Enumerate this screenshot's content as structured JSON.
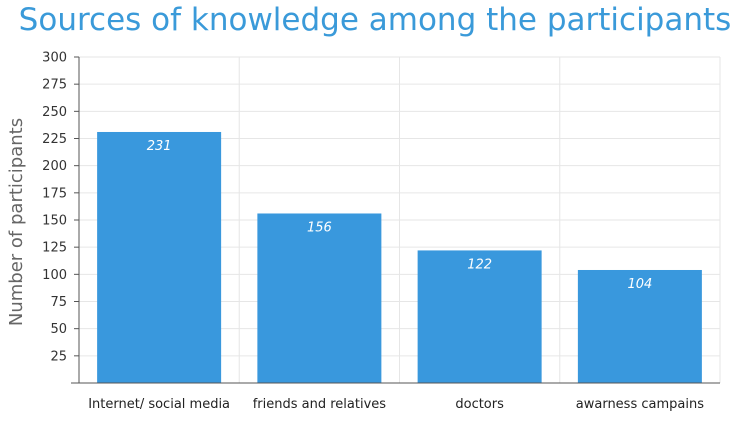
{
  "chart_data": {
    "type": "bar",
    "title": "Sources of knowledge among the participants",
    "xlabel": "",
    "ylabel": "Number of participants",
    "categories": [
      "Internet/ social media",
      "friends and relatives",
      "doctors",
      "awarness campains"
    ],
    "values": [
      231,
      156,
      122,
      104
    ],
    "data_labels": [
      "231",
      "156",
      "122",
      "104"
    ],
    "ylim": [
      0,
      300
    ],
    "yticks": [
      25,
      50,
      75,
      100,
      125,
      150,
      175,
      200,
      225,
      250,
      275,
      300
    ],
    "grid": true,
    "legend": "none",
    "colors": {
      "bar": "#3998dd",
      "title": "#3a9ad9",
      "grid": "#e6e6e6",
      "axis": "#555555"
    }
  }
}
